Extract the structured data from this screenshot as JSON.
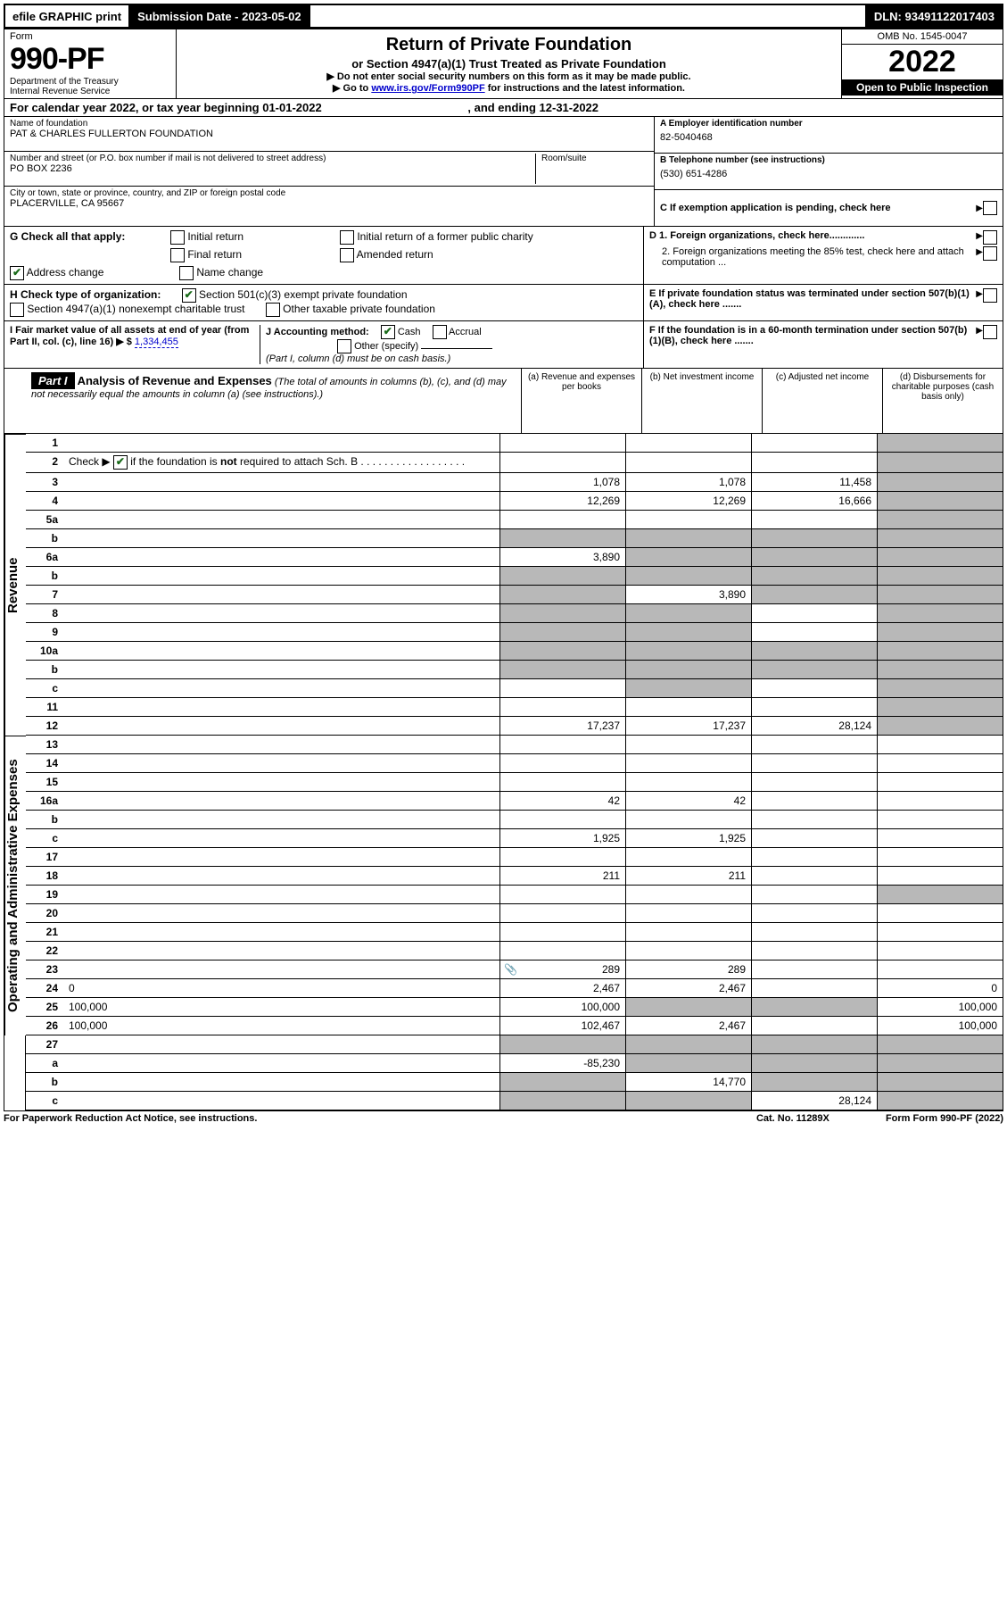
{
  "topbar": {
    "efile": "efile GRAPHIC print",
    "submission_label": "Submission Date - 2023-05-02",
    "dln_label": "DLN: 93491122017403"
  },
  "header": {
    "form_word": "Form",
    "form_number": "990-PF",
    "dept": "Department of the Treasury",
    "irs": "Internal Revenue Service",
    "title": "Return of Private Foundation",
    "subtitle": "or Section 4947(a)(1) Trust Treated as Private Foundation",
    "instr1": "▶ Do not enter social security numbers on this form as it may be made public.",
    "instr2_pre": "▶ Go to ",
    "instr2_link": "www.irs.gov/Form990PF",
    "instr2_post": " for instructions and the latest information.",
    "omb": "OMB No. 1545-0047",
    "year": "2022",
    "open": "Open to Public Inspection"
  },
  "cal_year": "For calendar year 2022, or tax year beginning 01-01-2022",
  "cal_year_end": ", and ending 12-31-2022",
  "org": {
    "name_lbl": "Name of foundation",
    "name": "PAT & CHARLES FULLERTON FOUNDATION",
    "addr_lbl": "Number and street (or P.O. box number if mail is not delivered to street address)",
    "addr": "PO BOX 2236",
    "room_lbl": "Room/suite",
    "city_lbl": "City or town, state or province, country, and ZIP or foreign postal code",
    "city": "PLACERVILLE, CA  95667",
    "ein_lbl": "A Employer identification number",
    "ein": "82-5040468",
    "phone_lbl": "B Telephone number (see instructions)",
    "phone": "(530) 651-4286",
    "c_lbl": "C If exemption application is pending, check here",
    "d1_lbl": "D 1. Foreign organizations, check here.............",
    "d2_lbl": "2. Foreign organizations meeting the 85% test, check here and attach computation ...",
    "e_lbl": "E  If private foundation status was terminated under section 507(b)(1)(A), check here .......",
    "f_lbl": "F  If the foundation is in a 60-month termination under section 507(b)(1)(B), check here ......."
  },
  "g": {
    "label": "G Check all that apply:",
    "initial": "Initial return",
    "initial_former": "Initial return of a former public charity",
    "final": "Final return",
    "amended": "Amended return",
    "address": "Address change",
    "name_change": "Name change"
  },
  "h": {
    "label": "H Check type of organization:",
    "sec501": "Section 501(c)(3) exempt private foundation",
    "sec4947": "Section 4947(a)(1) nonexempt charitable trust",
    "other_taxable": "Other taxable private foundation"
  },
  "i": {
    "label": "I Fair market value of all assets at end of year (from Part II, col. (c), line 16) ▶ $",
    "value": "1,334,455"
  },
  "j": {
    "label": "J Accounting method:",
    "cash": "Cash",
    "accrual": "Accrual",
    "other": "Other (specify)",
    "note": "(Part I, column (d) must be on cash basis.)"
  },
  "part1": {
    "label": "Part I",
    "title": "Analysis of Revenue and Expenses",
    "title_note": " (The total of amounts in columns (b), (c), and (d) may not necessarily equal the amounts in column (a) (see instructions).)",
    "col_a": "(a) Revenue and expenses per books",
    "col_b": "(b) Net investment income",
    "col_c": "(c) Adjusted net income",
    "col_d": "(d) Disbursements for charitable purposes (cash basis only)"
  },
  "sections": {
    "revenue": "Revenue",
    "expenses": "Operating and Administrative Expenses"
  },
  "rows": [
    {
      "n": "1",
      "d": "",
      "a": "",
      "b": "",
      "c": "",
      "grey_d": true
    },
    {
      "n": "2",
      "d": "",
      "a": "",
      "b": "",
      "c": "",
      "merge_amt": true,
      "grey_d": true,
      "check2": true
    },
    {
      "n": "3",
      "d": "",
      "a": "1,078",
      "b": "1,078",
      "c": "11,458",
      "grey_d": true
    },
    {
      "n": "4",
      "d": "",
      "a": "12,269",
      "b": "12,269",
      "c": "16,666",
      "grey_d": true
    },
    {
      "n": "5a",
      "d": "",
      "a": "",
      "b": "",
      "c": "",
      "grey_d": true
    },
    {
      "n": "b",
      "d": "",
      "a": "",
      "b": "",
      "c": "",
      "grey_all": true
    },
    {
      "n": "6a",
      "d": "",
      "a": "3,890",
      "b": "",
      "c": "",
      "grey_b": true,
      "grey_c": true,
      "grey_d": true
    },
    {
      "n": "b",
      "d": "",
      "a": "",
      "b": "",
      "c": "",
      "grey_all": true
    },
    {
      "n": "7",
      "d": "",
      "a": "",
      "b": "3,890",
      "c": "",
      "grey_a": true,
      "grey_c": true,
      "grey_d": true
    },
    {
      "n": "8",
      "d": "",
      "a": "",
      "b": "",
      "c": "",
      "grey_a": true,
      "grey_b": true,
      "grey_d": true
    },
    {
      "n": "9",
      "d": "",
      "a": "",
      "b": "",
      "c": "",
      "grey_a": true,
      "grey_b": true,
      "grey_d": true
    },
    {
      "n": "10a",
      "d": "",
      "a": "",
      "b": "",
      "c": "",
      "grey_all": true
    },
    {
      "n": "b",
      "d": "",
      "a": "",
      "b": "",
      "c": "",
      "grey_all": true
    },
    {
      "n": "c",
      "d": "",
      "a": "",
      "b": "",
      "c": "",
      "grey_b": true,
      "grey_d": true
    },
    {
      "n": "11",
      "d": "",
      "a": "",
      "b": "",
      "c": "",
      "grey_d": true
    },
    {
      "n": "12",
      "d": "",
      "a": "17,237",
      "b": "17,237",
      "c": "28,124",
      "grey_d": true,
      "section_end": true
    }
  ],
  "exp_rows": [
    {
      "n": "13",
      "d": "",
      "a": "",
      "b": "",
      "c": ""
    },
    {
      "n": "14",
      "d": "",
      "a": "",
      "b": "",
      "c": ""
    },
    {
      "n": "15",
      "d": "",
      "a": "",
      "b": "",
      "c": ""
    },
    {
      "n": "16a",
      "d": "",
      "a": "42",
      "b": "42",
      "c": ""
    },
    {
      "n": "b",
      "d": "",
      "a": "",
      "b": "",
      "c": ""
    },
    {
      "n": "c",
      "d": "",
      "a": "1,925",
      "b": "1,925",
      "c": ""
    },
    {
      "n": "17",
      "d": "",
      "a": "",
      "b": "",
      "c": ""
    },
    {
      "n": "18",
      "d": "",
      "a": "211",
      "b": "211",
      "c": ""
    },
    {
      "n": "19",
      "d": "",
      "a": "",
      "b": "",
      "c": "",
      "grey_d": true
    },
    {
      "n": "20",
      "d": "",
      "a": "",
      "b": "",
      "c": ""
    },
    {
      "n": "21",
      "d": "",
      "a": "",
      "b": "",
      "c": ""
    },
    {
      "n": "22",
      "d": "",
      "a": "",
      "b": "",
      "c": ""
    },
    {
      "n": "23",
      "d": "",
      "a": "289",
      "b": "289",
      "c": "",
      "icon": true
    },
    {
      "n": "24",
      "d": "0",
      "a": "2,467",
      "b": "2,467",
      "c": ""
    },
    {
      "n": "25",
      "d": "100,000",
      "a": "100,000",
      "b": "",
      "c": "",
      "grey_b": true,
      "grey_c": true
    },
    {
      "n": "26",
      "d": "100,000",
      "a": "102,467",
      "b": "2,467",
      "c": "",
      "section_end": true
    }
  ],
  "final_rows": [
    {
      "n": "27",
      "d": "",
      "a": "",
      "b": "",
      "c": "",
      "grey_all": true
    },
    {
      "n": "a",
      "d": "",
      "a": "-85,230",
      "b": "",
      "c": "",
      "grey_b": true,
      "grey_c": true,
      "grey_d": true
    },
    {
      "n": "b",
      "d": "",
      "a": "",
      "b": "14,770",
      "c": "",
      "grey_a": true,
      "grey_c": true,
      "grey_d": true
    },
    {
      "n": "c",
      "d": "",
      "a": "",
      "b": "",
      "c": "28,124",
      "grey_a": true,
      "grey_b": true,
      "grey_d": true
    }
  ],
  "footer": {
    "left": "For Paperwork Reduction Act Notice, see instructions.",
    "cat": "Cat. No. 11289X",
    "form": "Form 990-PF (2022)"
  }
}
